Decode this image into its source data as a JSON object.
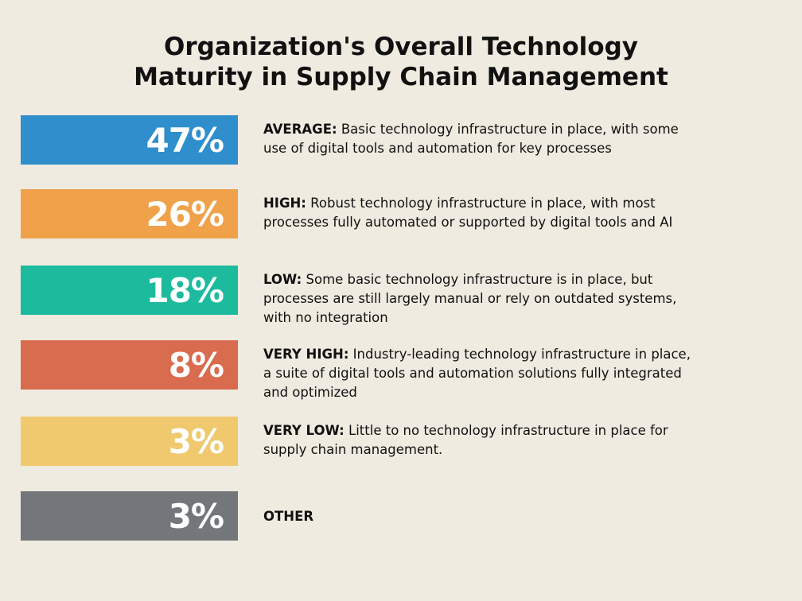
{
  "title_lines": [
    "Organization's Overall Technology",
    "Maturity in Supply Chain Management"
  ],
  "chart_data": {
    "type": "bar",
    "title": "Organization's Overall Technology Maturity in Supply Chain Management",
    "unit": "%",
    "items": [
      {
        "label": "AVERAGE:",
        "value": 47,
        "display": "47%",
        "color": "#2f8fcd",
        "description": "Basic technology infrastructure in place, with some use of digital tools and automation for key processes"
      },
      {
        "label": "HIGH:",
        "value": 26,
        "display": "26%",
        "color": "#f0a24b",
        "description": "Robust technology infrastructure in place, with most processes fully automated or supported by digital tools and AI"
      },
      {
        "label": "LOW:",
        "value": 18,
        "display": "18%",
        "color": "#1dbb9e",
        "description": "Some basic technology infrastructure is in place, but processes are still largely manual or rely on outdated systems, with no integration"
      },
      {
        "label": "VERY HIGH:",
        "value": 8,
        "display": "8%",
        "color": "#d96b4e",
        "description": "Industry-leading technology infrastructure in place, a suite of digital tools and automation solutions fully integrated and optimized"
      },
      {
        "label": "VERY LOW:",
        "value": 3,
        "display": "3%",
        "color": "#f0c86e",
        "description": "Little to no technology infrastructure in place for supply chain management."
      },
      {
        "label": "OTHER",
        "value": 3,
        "display": "3%",
        "color": "#73777b",
        "description": ""
      }
    ]
  }
}
